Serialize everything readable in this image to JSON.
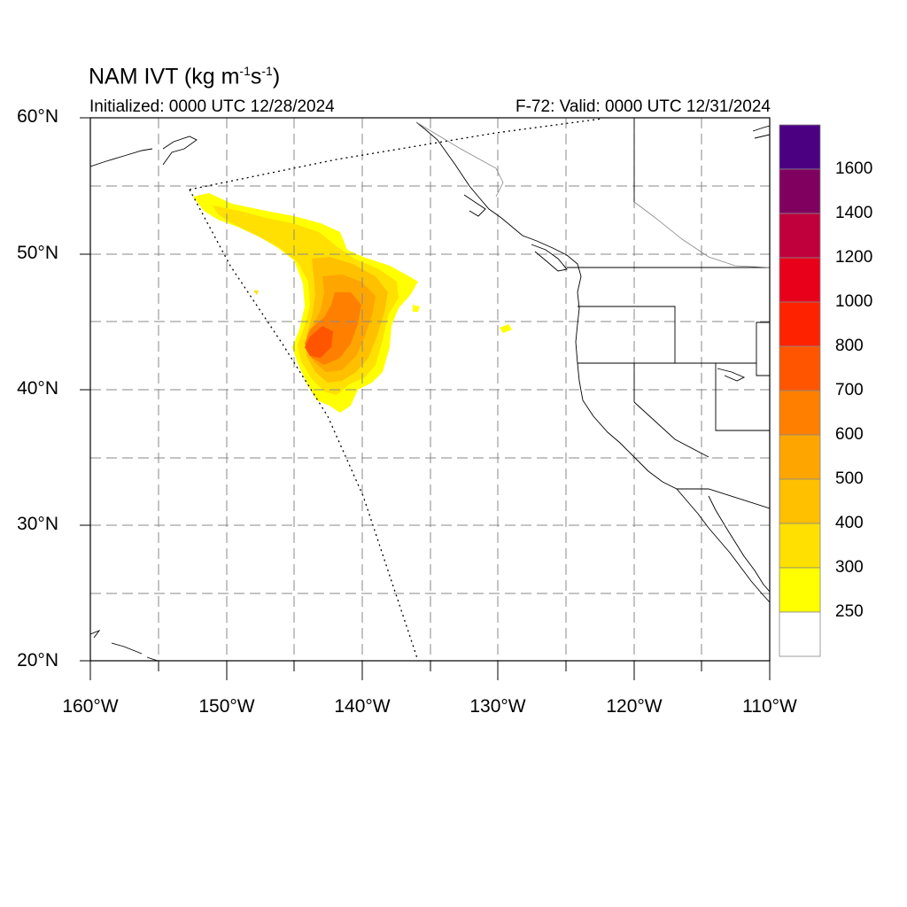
{
  "title": {
    "product": "NAM IVT",
    "units_prefix": "(kg m",
    "exp1": "-1",
    "units_mid": "s",
    "exp2": "-1",
    "units_suffix": ")"
  },
  "initialized": "Initialized: 0000 UTC 12/28/2024",
  "valid": "F-72: Valid: 0000 UTC 12/31/2024",
  "lat_labels": [
    "60°N",
    "50°N",
    "40°N",
    "30°N",
    "20°N"
  ],
  "lon_labels": [
    "160°W",
    "150°W",
    "140°W",
    "130°W",
    "120°W",
    "110°W"
  ],
  "colorbar": {
    "labels": [
      "1600",
      "1400",
      "1200",
      "1000",
      "800",
      "700",
      "600",
      "500",
      "400",
      "300",
      "250"
    ],
    "colors": [
      "#4b0082",
      "#800060",
      "#c0003c",
      "#e8001a",
      "#ff2200",
      "#ff5500",
      "#ff8000",
      "#ffa500",
      "#ffc000",
      "#ffe000",
      "#ffff00",
      "#ffffff"
    ]
  },
  "map_data": {
    "region": "Northeast Pacific and western North America",
    "lon_range": [
      -160,
      -110
    ],
    "lat_range": [
      20,
      60
    ],
    "feature": "atmospheric river plume of integrated vapor transport offshore of the Pacific Northwest, maximum near 43N 143W"
  }
}
